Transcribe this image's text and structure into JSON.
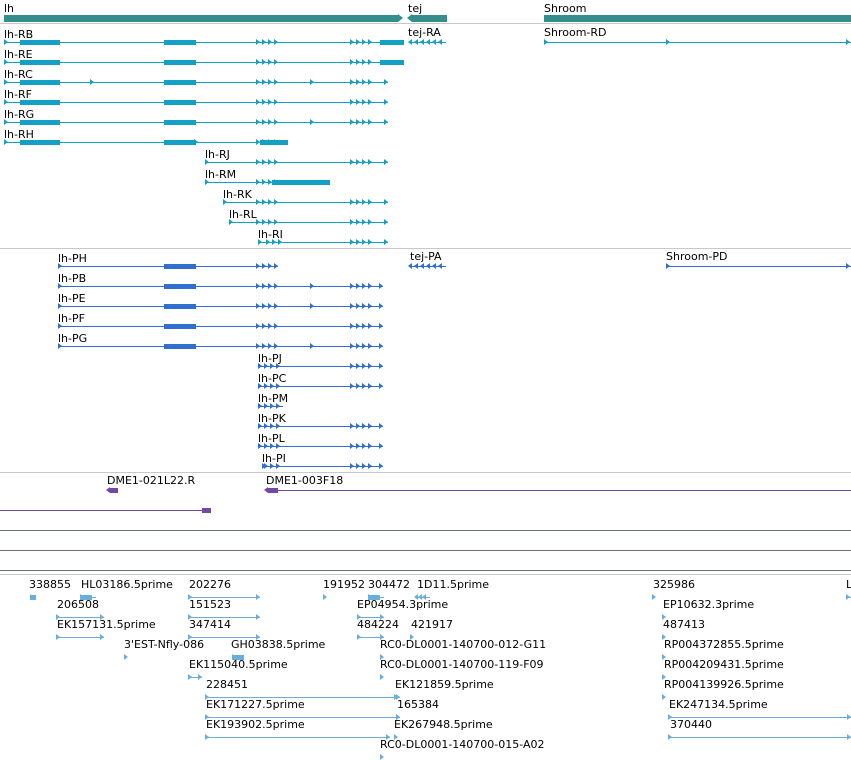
{
  "colors": {
    "gene": "#338e8c",
    "transcript": "#12a1c4",
    "protein": "#2e6fd0",
    "clone": "#7349a8",
    "est": "#6aaede",
    "divider": "#c8c8c8",
    "separator": "#6b6f78"
  },
  "gene_track": {
    "genes": [
      {
        "name": "lh"
      },
      {
        "name": "tej"
      },
      {
        "name": "Shroom"
      }
    ]
  },
  "transcripts": [
    {
      "name": "lh-RB"
    },
    {
      "name": "lh-RE"
    },
    {
      "name": "lh-RC"
    },
    {
      "name": "lh-RF"
    },
    {
      "name": "lh-RG"
    },
    {
      "name": "lh-RH"
    },
    {
      "name": "lh-RJ"
    },
    {
      "name": "lh-RM"
    },
    {
      "name": "lh-RK"
    },
    {
      "name": "lh-RL"
    },
    {
      "name": "lh-RI"
    },
    {
      "name": "tej-RA"
    },
    {
      "name": "Shroom-RD"
    }
  ],
  "proteins": [
    {
      "name": "lh-PH"
    },
    {
      "name": "lh-PB"
    },
    {
      "name": "lh-PE"
    },
    {
      "name": "lh-PF"
    },
    {
      "name": "lh-PG"
    },
    {
      "name": "lh-PJ"
    },
    {
      "name": "lh-PC"
    },
    {
      "name": "lh-PM"
    },
    {
      "name": "lh-PK"
    },
    {
      "name": "lh-PL"
    },
    {
      "name": "lh-PI"
    },
    {
      "name": "tej-PA"
    },
    {
      "name": "Shroom-PD"
    }
  ],
  "clones": [
    {
      "name": "DME1-021L22.R"
    },
    {
      "name": "DME1-003F18"
    }
  ],
  "ests": [
    {
      "name": "338855"
    },
    {
      "name": "HL03186.5prime"
    },
    {
      "name": "202276"
    },
    {
      "name": "191952"
    },
    {
      "name": "304472"
    },
    {
      "name": "1D11.5prime"
    },
    {
      "name": "325986"
    },
    {
      "name": "L"
    },
    {
      "name": "206508"
    },
    {
      "name": "151523"
    },
    {
      "name": "EP04954.3prime"
    },
    {
      "name": "EP10632.3prime"
    },
    {
      "name": "EK157131.5prime"
    },
    {
      "name": "347414"
    },
    {
      "name": "484224"
    },
    {
      "name": "421917"
    },
    {
      "name": "487413"
    },
    {
      "name": "3'EST-Nfly-086"
    },
    {
      "name": "GH03838.5prime"
    },
    {
      "name": "RC0-DL0001-140700-012-G11"
    },
    {
      "name": "RP004372855.5prime"
    },
    {
      "name": "EK115040.5prime"
    },
    {
      "name": "RC0-DL0001-140700-119-F09"
    },
    {
      "name": "RP004209431.5prime"
    },
    {
      "name": "228451"
    },
    {
      "name": "EK121859.5prime"
    },
    {
      "name": "RP004139926.5prime"
    },
    {
      "name": "EK171227.5prime"
    },
    {
      "name": "165384"
    },
    {
      "name": "EK247134.5prime"
    },
    {
      "name": "EK193902.5prime"
    },
    {
      "name": "EK267948.5prime"
    },
    {
      "name": "370440"
    },
    {
      "name": "RC0-DL0001-140700-015-A02"
    }
  ]
}
